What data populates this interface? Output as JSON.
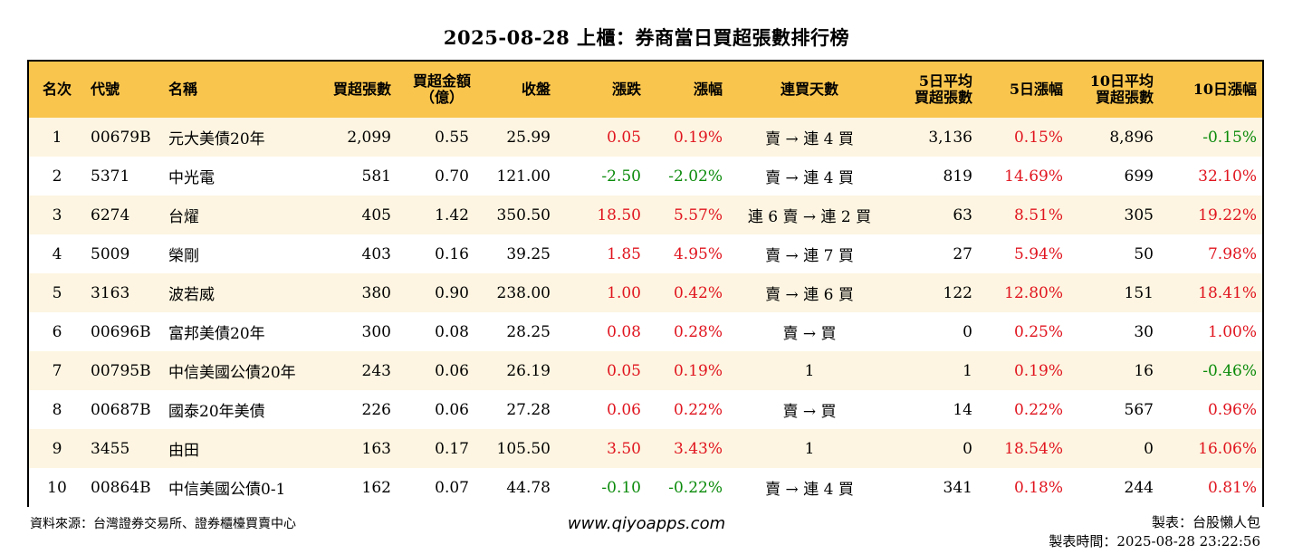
{
  "title": "2025-08-28 上櫃：券商當日買超張數排行榜",
  "headers": {
    "rank": "名次",
    "code": "代號",
    "name": "名稱",
    "buy_lots": "買超張數",
    "amount_l1": "買超金額",
    "amount_l2": "（億）",
    "close": "收盤",
    "change": "漲跌",
    "pct": "漲幅",
    "days": "連買天數",
    "avg5_l1": "5日平均",
    "avg5_l2": "買超張數",
    "pct5": "5日漲幅",
    "avg10_l1": "10日平均",
    "avg10_l2": "買超張數",
    "pct10": "10日漲幅"
  },
  "rows": [
    {
      "rank": "1",
      "code": "00679B",
      "name": "元大美債20年",
      "buy_lots": "2,099",
      "amount": "0.55",
      "close": "25.99",
      "change": "0.05",
      "pct": "0.19%",
      "days": "賣 → 連 4 買",
      "avg5": "3,136",
      "pct5": "0.15%",
      "avg10": "8,896",
      "pct10": "-0.15%"
    },
    {
      "rank": "2",
      "code": "5371",
      "name": "中光電",
      "buy_lots": "581",
      "amount": "0.70",
      "close": "121.00",
      "change": "-2.50",
      "pct": "-2.02%",
      "days": "賣 → 連 4 買",
      "avg5": "819",
      "pct5": "14.69%",
      "avg10": "699",
      "pct10": "32.10%"
    },
    {
      "rank": "3",
      "code": "6274",
      "name": "台燿",
      "buy_lots": "405",
      "amount": "1.42",
      "close": "350.50",
      "change": "18.50",
      "pct": "5.57%",
      "days": "連 6 賣 → 連 2 買",
      "avg5": "63",
      "pct5": "8.51%",
      "avg10": "305",
      "pct10": "19.22%"
    },
    {
      "rank": "4",
      "code": "5009",
      "name": "榮剛",
      "buy_lots": "403",
      "amount": "0.16",
      "close": "39.25",
      "change": "1.85",
      "pct": "4.95%",
      "days": "賣 → 連 7 買",
      "avg5": "27",
      "pct5": "5.94%",
      "avg10": "50",
      "pct10": "7.98%"
    },
    {
      "rank": "5",
      "code": "3163",
      "name": "波若威",
      "buy_lots": "380",
      "amount": "0.90",
      "close": "238.00",
      "change": "1.00",
      "pct": "0.42%",
      "days": "賣 → 連 6 買",
      "avg5": "122",
      "pct5": "12.80%",
      "avg10": "151",
      "pct10": "18.41%"
    },
    {
      "rank": "6",
      "code": "00696B",
      "name": "富邦美債20年",
      "buy_lots": "300",
      "amount": "0.08",
      "close": "28.25",
      "change": "0.08",
      "pct": "0.28%",
      "days": "賣 → 買",
      "avg5": "0",
      "pct5": "0.25%",
      "avg10": "30",
      "pct10": "1.00%"
    },
    {
      "rank": "7",
      "code": "00795B",
      "name": "中信美國公債20年",
      "buy_lots": "243",
      "amount": "0.06",
      "close": "26.19",
      "change": "0.05",
      "pct": "0.19%",
      "days": "1",
      "avg5": "1",
      "pct5": "0.19%",
      "avg10": "16",
      "pct10": "-0.46%"
    },
    {
      "rank": "8",
      "code": "00687B",
      "name": "國泰20年美債",
      "buy_lots": "226",
      "amount": "0.06",
      "close": "27.28",
      "change": "0.06",
      "pct": "0.22%",
      "days": "賣 → 買",
      "avg5": "14",
      "pct5": "0.22%",
      "avg10": "567",
      "pct10": "0.96%"
    },
    {
      "rank": "9",
      "code": "3455",
      "name": "由田",
      "buy_lots": "163",
      "amount": "0.17",
      "close": "105.50",
      "change": "3.50",
      "pct": "3.43%",
      "days": "1",
      "avg5": "0",
      "pct5": "18.54%",
      "avg10": "0",
      "pct10": "16.06%"
    },
    {
      "rank": "10",
      "code": "00864B",
      "name": "中信美國公債0-1",
      "buy_lots": "162",
      "amount": "0.07",
      "close": "44.78",
      "change": "-0.10",
      "pct": "-0.22%",
      "days": "賣 → 連 4 買",
      "avg5": "341",
      "pct5": "0.18%",
      "avg10": "244",
      "pct10": "0.81%"
    }
  ],
  "footer": {
    "source": "資料來源：台灣證券交易所、證券櫃檯買賣中心",
    "website": "www.qiyoapps.com",
    "maker": "製表：台股懶人包",
    "time": "製表時間：2025-08-28 23:22:56"
  },
  "colors": {
    "header_bg": "#f9c54d",
    "row_alt_bg": "#fdf5e1",
    "up": "#e0141e",
    "down": "#0a8a0a"
  }
}
